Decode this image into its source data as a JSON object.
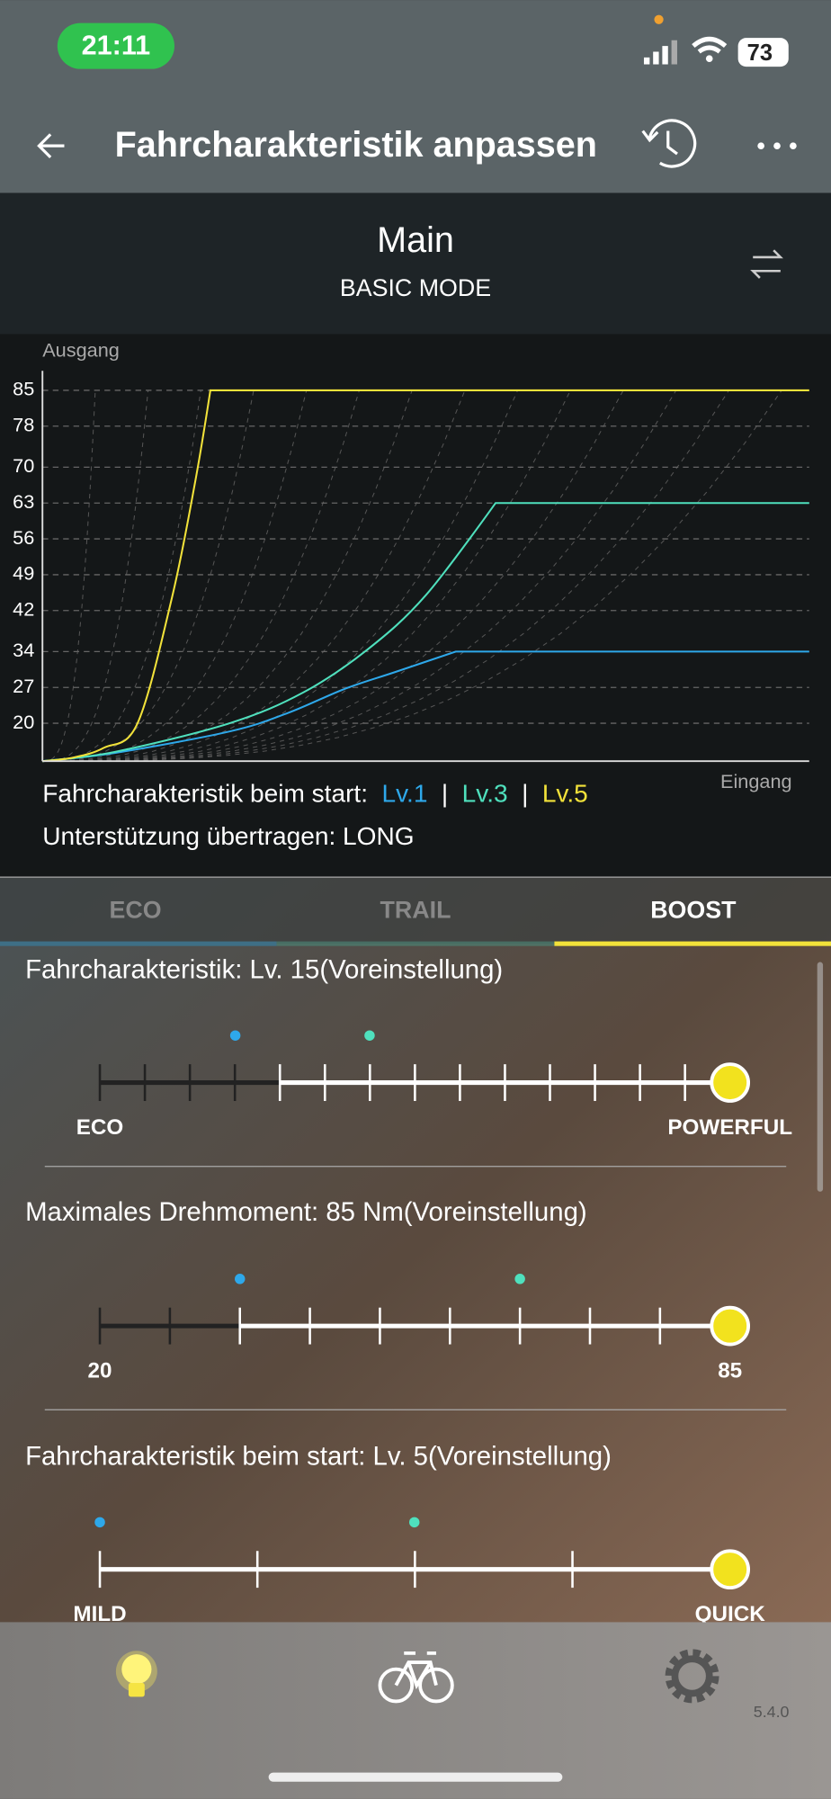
{
  "status_bar": {
    "time": "21:11",
    "battery": "73"
  },
  "header": {
    "title": "Fahrcharakteristik anpassen"
  },
  "profile": {
    "name": "Main",
    "mode": "BASIC MODE"
  },
  "chart_data": {
    "type": "line",
    "y_label": "Ausgang",
    "x_label": "Eingang",
    "xlim": [
      0,
      100
    ],
    "ylim": [
      12.6,
      88.8
    ],
    "yticks": [
      20,
      27,
      34,
      42,
      49,
      56,
      63,
      70,
      78,
      85
    ],
    "grid": true,
    "series": [
      {
        "name": "Lv.1",
        "color": "#2ea8ea",
        "x": [
          0,
          9.4,
          24.4,
          32,
          39.4,
          46,
          53.9,
          100
        ],
        "values": [
          12.6,
          14.2,
          18.4,
          22,
          26.7,
          30,
          34,
          34
        ]
      },
      {
        "name": "Lv.3",
        "color": "#4fe0bd",
        "x": [
          0,
          9.4,
          24.4,
          34,
          42.4,
          50,
          59.1,
          100
        ],
        "values": [
          12.6,
          14.4,
          20,
          26,
          34.4,
          45,
          63,
          63
        ]
      },
      {
        "name": "Lv.5",
        "color": "#f2e23a",
        "x": [
          0,
          4,
          8,
          12.4,
          16.9,
          19.9,
          21.9,
          100
        ],
        "values": [
          12.6,
          13.3,
          15.2,
          20,
          44.6,
          67,
          85,
          85
        ]
      }
    ]
  },
  "chart_notes": {
    "start_prefix": "Fahrcharakteristik beim start:",
    "separator": "|",
    "transfer": "Unterstützung übertragen: LONG"
  },
  "tabs": [
    "ECO",
    "TRAIL",
    "BOOST"
  ],
  "settings": [
    {
      "label": "Fahrcharakteristik: Lv. 15(Voreinstellung)",
      "min_label": "ECO",
      "max_label": "POWERFUL"
    },
    {
      "label": "Maximales Drehmoment: 85 Nm(Voreinstellung)",
      "min_label": "20",
      "max_label": "85"
    },
    {
      "label": "Fahrcharakteristik beim start: Lv. 5(Voreinstellung)",
      "min_label": "MILD",
      "max_label": "QUICK"
    }
  ],
  "version": "5.4.0"
}
